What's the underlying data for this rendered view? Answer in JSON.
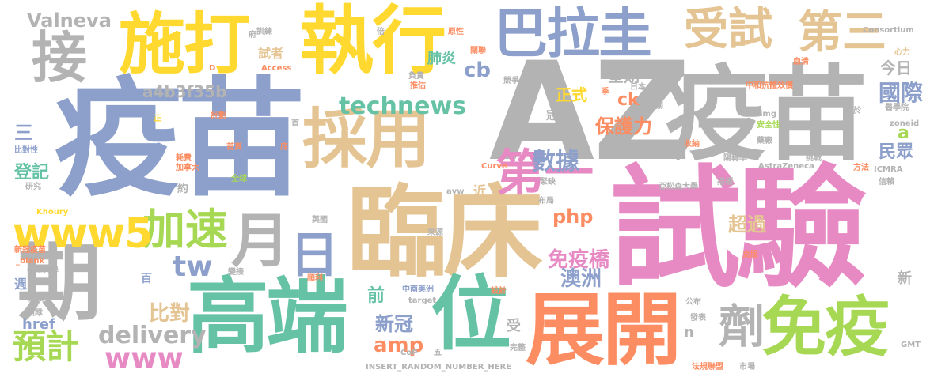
{
  "palette": {
    "blue": "#8da0cb",
    "gray": "#b3b3b3",
    "yellow": "#ffd92f",
    "tan": "#e5c494",
    "green": "#66c2a5",
    "pink": "#e78ac3",
    "orange": "#fc8d62",
    "lime": "#a6d854"
  },
  "words": {
    "yimiao_big": "疫苗",
    "az": "AZ",
    "yimiao_right": "疫苗",
    "shiyan": "試驗",
    "linchuang": "臨床",
    "zhixing": "執行",
    "shida": "施打",
    "balagui": "巴拉圭",
    "shoushi": "受試",
    "disan": "第三",
    "jie": "接",
    "caiyong": "採用",
    "yue": "月",
    "ri": "日",
    "qi": "期",
    "gaoduan": "高端",
    "wei": "位",
    "zhankai": "展開",
    "mianyi": "免疫",
    "ji": "劑",
    "jiasu": "加速",
    "www5": "www5",
    "technews": "technews",
    "diyi": "第一",
    "yuji": "預計",
    "www": "www",
    "delivery": "delivery",
    "tw": "tw",
    "valneva": "Valneva",
    "a4b": "a4b3f35b",
    "shuju": "數據",
    "php": "php",
    "mianyiqiao": "免疫橋",
    "aozhou": "澳洲",
    "baohuli": "保護力",
    "zhengshi": "正式",
    "guoji": "國際",
    "minzhong": "民眾",
    "chaoguo": "超過",
    "bidui": "比對",
    "href": "href",
    "amp": "amp",
    "xinguan": "新冠",
    "qian": "前",
    "feiyan": "肺炎",
    "cb": "cb",
    "xingqi": "星期",
    "jinri": "今日",
    "ck": "ck",
    "dengji": "登記",
    "san": "三",
    "a": "a",
    "shouzhe": "試者",
    "zhou": "週",
    "bai": "百",
    "yue2": "約",
    "jin": "近",
    "guan": "冠",
    "n": "n",
    "shou": "受",
    "xin": "新",
    "xunlian": "訓練",
    "fu": "府",
    "bei": "倍",
    "yuanxing": "原性",
    "guolian": "關聯",
    "fuze": "負責",
    "tuixin": "推估",
    "jingzheng": "競爭",
    "consortium": "Consortium",
    "xinli": "心力",
    "xieqing": "血清",
    "access": "Access",
    "d": "D",
    "ribeng": "日本",
    "zhonghe": "中和抗體效價",
    "yixueyuan": "醫學院",
    "img": "img",
    "anquanxing": "安全性",
    "zoneid": "zoneid",
    "jihua": "計劃",
    "zheng": "正",
    "shou2": "首",
    "xiangguan": "相關",
    "liean": "劣於",
    "bidui2": "比對性",
    "shouye": "首頁",
    "di": "底",
    "yaozhen": "藥廠",
    "haofei": "耗費",
    "jianada": "加拿大",
    "src": "src",
    "xueqi": "學者",
    "shoulian": "收納",
    "yangzhuanzhe": "陽轉率",
    "curve": "Curve",
    "yanjiu": "研究",
    "quanqiu": "全球",
    "astrazeneca": "AstraZeneca",
    "tiaozhan": "挑戰",
    "fangfa": "方法",
    "icmra": "ICMRA",
    "xinlai": "信賴",
    "jinque": "緊缺",
    "zhibiao": "指標",
    "yasongjia": "亞松森大學",
    "avw": "avw",
    "bujv": "布局",
    "khoury": "Khoury",
    "yingguo": "英國",
    "laiyuan": "來源",
    "xinguanyimiao": "新冠疫苗",
    "blank": "_blank",
    "niujin": "牛津大學",
    "kefu": "克服",
    "shunli": "順利",
    "biantan": "變接",
    "guimo": "規模",
    "zhongnanmei": "中南美洲",
    "target": "target",
    "sheji": "設計",
    "tuanti": "團隊",
    "cop": "CoP",
    "wu": "五",
    "wanbei": "完整",
    "gongbu": "公布",
    "fabiao": "發表",
    "gmt": "GMT",
    "insert": "INSERT_RANDOM_NUMBER_HERE",
    "fagui": "法規聯盟",
    "shichang": "市場",
    "ji2": "季"
  }
}
